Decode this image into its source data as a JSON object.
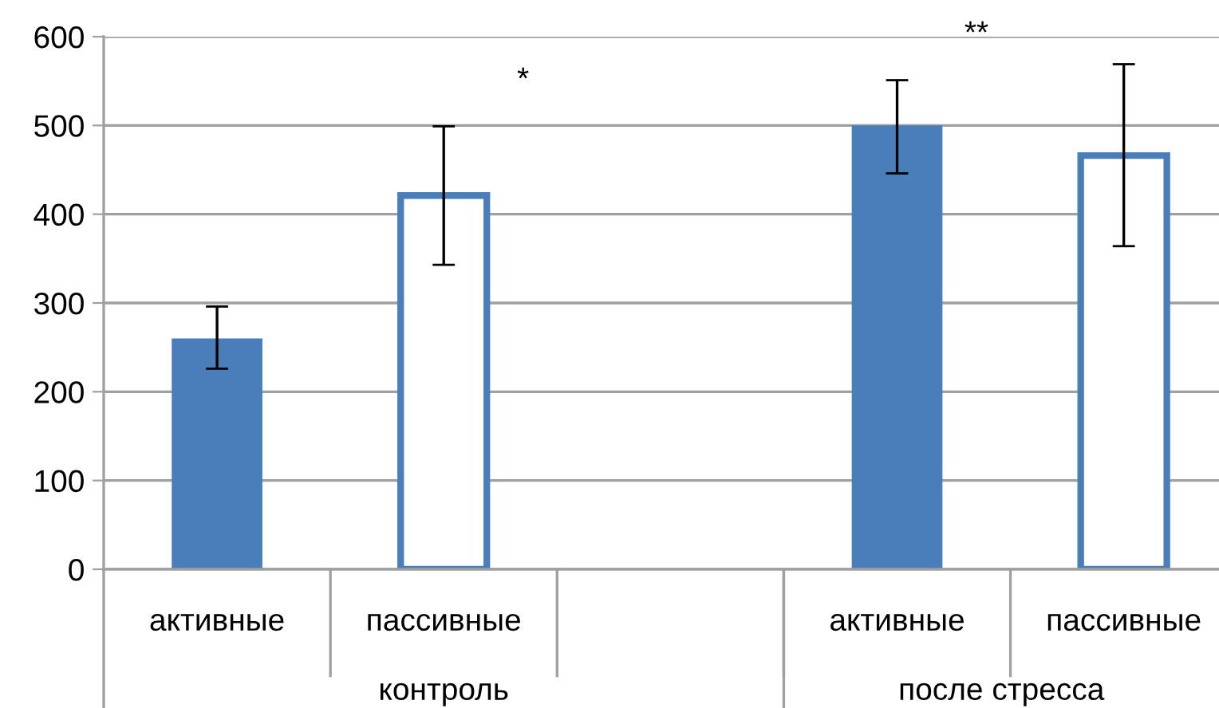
{
  "chart_data": {
    "type": "bar",
    "categories": [
      "активные",
      "пассивные",
      null,
      "активные",
      "пассивные"
    ],
    "series": [
      {
        "color": "#4a7ebb",
        "values": [
          260,
          null,
          null,
          500,
          null
        ],
        "errors": [
          [
            226,
            296
          ],
          null,
          null,
          [
            446,
            551
          ],
          null
        ]
      },
      {
        "color": "#4a7ebb",
        "values": [
          null,
          421,
          null,
          null,
          466
        ],
        "errors": [
          null,
          [
            343,
            499
          ],
          null,
          null,
          [
            364,
            569
          ]
        ]
      }
    ],
    "annotations": [
      "контроль",
      "после стресса",
      "*",
      "**"
    ],
    "ylim": [
      0,
      600
    ],
    "yticks": [
      0,
      100,
      200,
      300,
      400,
      500,
      600
    ],
    "grid": "y",
    "legend": false
  }
}
